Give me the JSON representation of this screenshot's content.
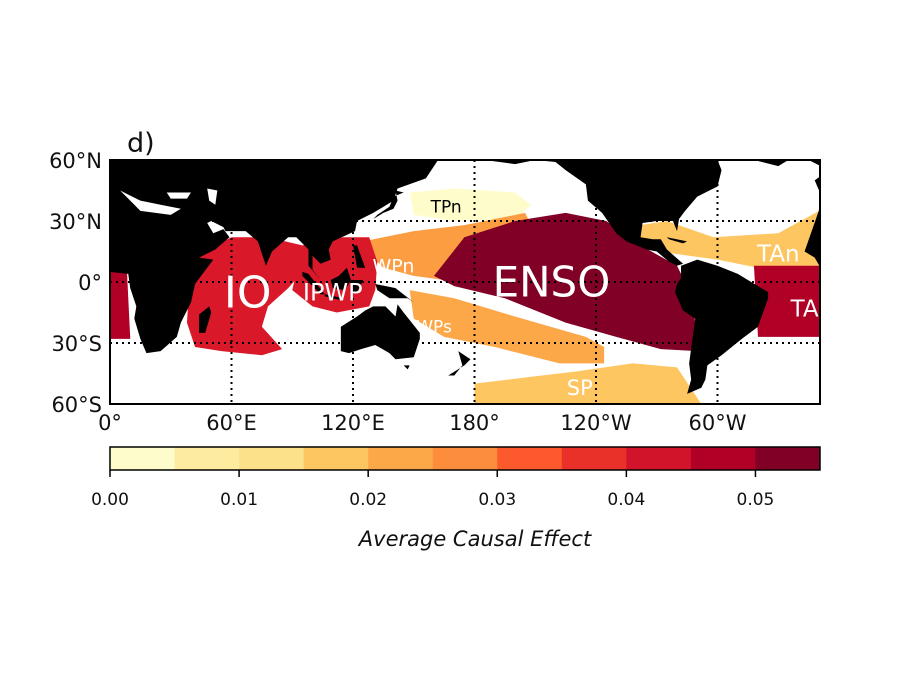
{
  "panel_label": "d)",
  "map": {
    "lat_ticks": [
      {
        "lat": 60,
        "label": "60°N"
      },
      {
        "lat": 30,
        "label": "30°N"
      },
      {
        "lat": 0,
        "label": "0°"
      },
      {
        "lat": -30,
        "label": "30°S"
      },
      {
        "lat": -60,
        "label": "60°S"
      }
    ],
    "lon_ticks": [
      {
        "lon": 0,
        "label": "0°"
      },
      {
        "lon": 60,
        "label": "60°E"
      },
      {
        "lon": 120,
        "label": "120°E"
      },
      {
        "lon": 180,
        "label": "180°"
      },
      {
        "lon": 240,
        "label": "120°W"
      },
      {
        "lon": 300,
        "label": "60°W"
      }
    ],
    "regions": [
      {
        "id": "TPn",
        "label": "TPn",
        "value": 0.002,
        "color": "#fffccc",
        "text_color": "#000000"
      },
      {
        "id": "SP",
        "label": "SP",
        "value": 0.017,
        "color": "#fdc660",
        "text_color": "#ffffff"
      },
      {
        "id": "TAn",
        "label": "TAn",
        "value": 0.017,
        "color": "#fdc660",
        "text_color": "#ffffff"
      },
      {
        "id": "WPs",
        "label": "WPs",
        "value": 0.023,
        "color": "#fca848",
        "text_color": "#ffffff"
      },
      {
        "id": "WPn",
        "label": "WPn",
        "value": 0.025,
        "color": "#fc9d42",
        "text_color": "#ffffff"
      },
      {
        "id": "IO",
        "label": "IO",
        "value": 0.042,
        "color": "#d9192a",
        "text_color": "#ffffff"
      },
      {
        "id": "IPWP",
        "label": "IPWP",
        "value": 0.042,
        "color": "#d9192a",
        "text_color": "#ffffff"
      },
      {
        "id": "TAs",
        "label": "TAs",
        "value": 0.048,
        "color": "#b00026",
        "text_color": "#ffffff"
      },
      {
        "id": "ENSO",
        "label": "ENSO",
        "value": 0.053,
        "color": "#800026",
        "text_color": "#ffffff"
      }
    ]
  },
  "colorbar": {
    "min": 0,
    "max": 0.055,
    "colors": [
      "#fffccc",
      "#fdeba0",
      "#fde08a",
      "#fdc660",
      "#fca848",
      "#fc8d3c",
      "#fc5a2d",
      "#e9312a",
      "#d1142a",
      "#b00026",
      "#800026"
    ],
    "ticks": [
      {
        "value": 0.0,
        "label": "0.00"
      },
      {
        "value": 0.01,
        "label": "0.01"
      },
      {
        "value": 0.02,
        "label": "0.02"
      },
      {
        "value": 0.03,
        "label": "0.03"
      },
      {
        "value": 0.04,
        "label": "0.04"
      },
      {
        "value": 0.05,
        "label": "0.05"
      }
    ],
    "label": "Average Causal Effect"
  }
}
